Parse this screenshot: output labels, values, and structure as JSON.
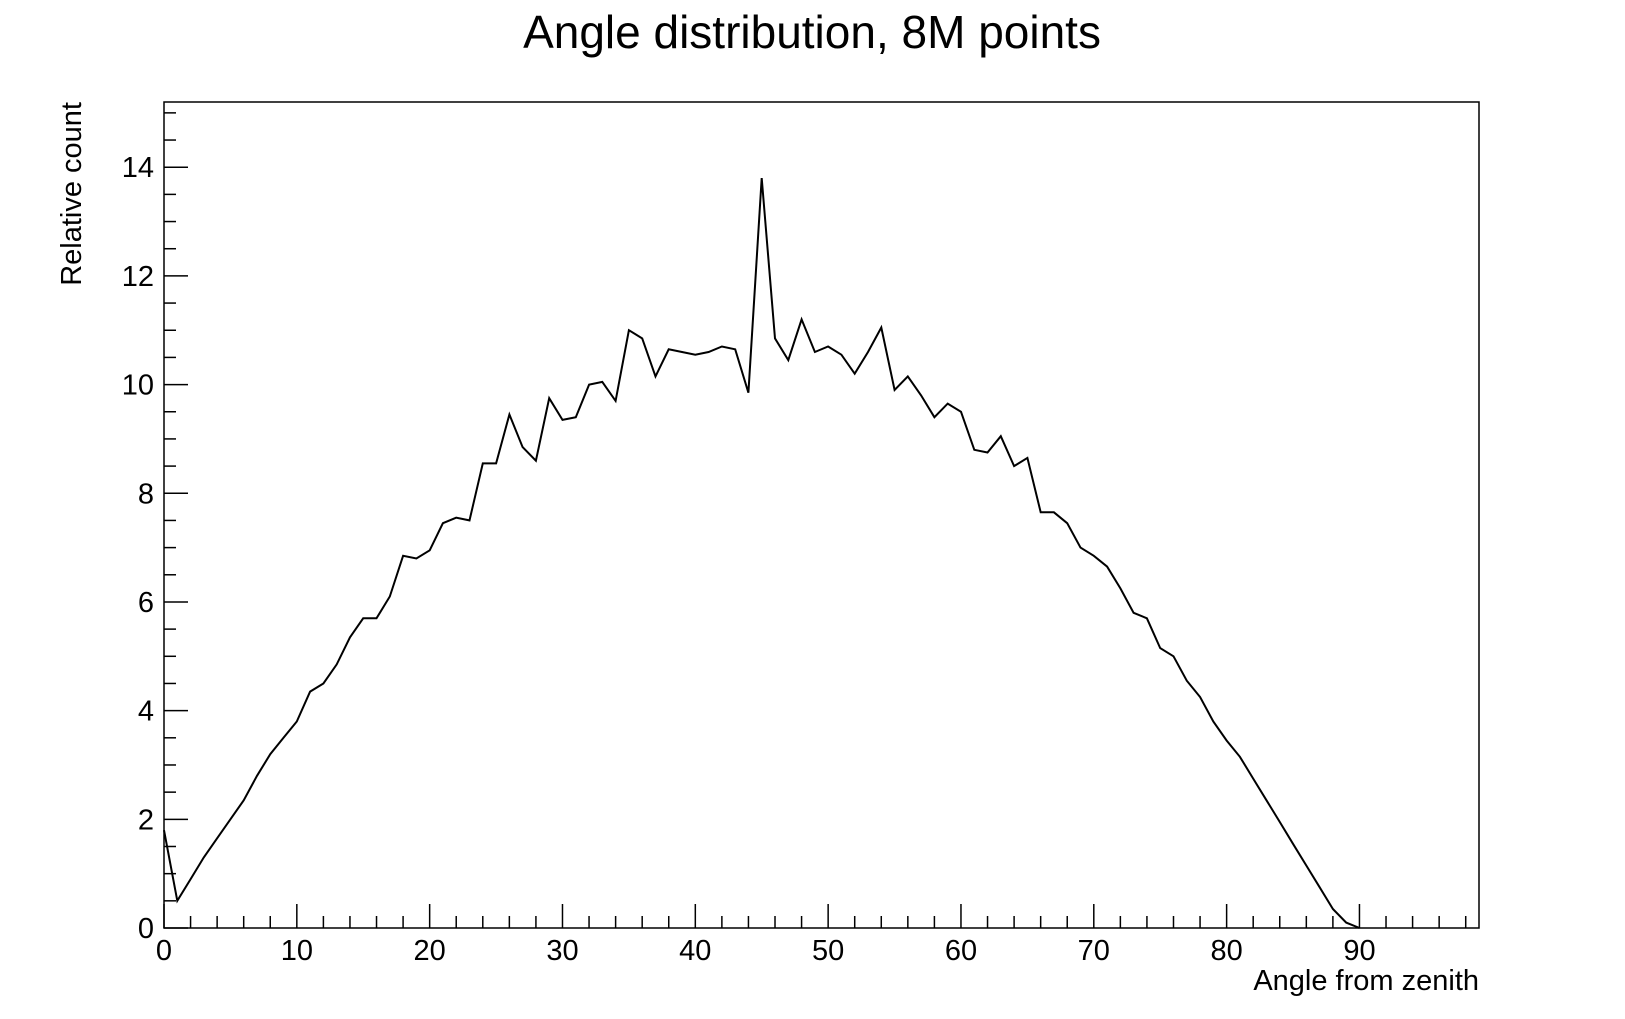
{
  "chart_data": {
    "type": "line",
    "title": "Angle distribution, 8M points",
    "xlabel": "Angle from zenith",
    "ylabel": "Relative count",
    "xlim": [
      0,
      99
    ],
    "ylim": [
      0,
      15.2
    ],
    "xticks": [
      0,
      10,
      20,
      30,
      40,
      50,
      60,
      70,
      80,
      90
    ],
    "yticks": [
      0,
      2,
      4,
      6,
      8,
      10,
      12,
      14
    ],
    "grid": false,
    "legend": "none",
    "series": [
      {
        "x": [
          0,
          1,
          2,
          3,
          4,
          5,
          6,
          7,
          8,
          9,
          10,
          11,
          12,
          13,
          14,
          15,
          16,
          17,
          18,
          19,
          20,
          21,
          22,
          23,
          24,
          25,
          26,
          27,
          28,
          29,
          30,
          31,
          32,
          33,
          34,
          35,
          36,
          37,
          38,
          39,
          40,
          41,
          42,
          43,
          44,
          45,
          46,
          47,
          48,
          49,
          50,
          51,
          52,
          53,
          54,
          55,
          56,
          57,
          58,
          59,
          60,
          61,
          62,
          63,
          64,
          65,
          66,
          67,
          68,
          69,
          70,
          71,
          72,
          73,
          74,
          75,
          76,
          77,
          78,
          79,
          80,
          81,
          82,
          83,
          84,
          85,
          86,
          87,
          88,
          89,
          90
        ],
        "values": [
          1.8,
          0.5,
          0.9,
          1.3,
          1.65,
          2.0,
          2.35,
          2.8,
          3.2,
          3.5,
          3.8,
          4.35,
          4.5,
          4.85,
          5.35,
          5.7,
          5.7,
          6.1,
          6.85,
          6.8,
          6.95,
          7.45,
          7.55,
          7.5,
          8.55,
          8.55,
          9.45,
          8.85,
          8.6,
          9.75,
          9.35,
          9.4,
          10.0,
          10.05,
          9.7,
          11.0,
          10.85,
          10.15,
          10.65,
          10.6,
          10.55,
          10.6,
          10.7,
          10.65,
          9.85,
          13.8,
          10.85,
          10.45,
          11.2,
          10.6,
          10.7,
          10.55,
          10.2,
          10.6,
          11.05,
          9.9,
          10.15,
          9.8,
          9.4,
          9.65,
          9.5,
          8.8,
          8.75,
          9.05,
          8.5,
          8.65,
          7.65,
          7.65,
          7.45,
          7.0,
          6.85,
          6.65,
          6.25,
          5.8,
          5.7,
          5.15,
          5.0,
          4.55,
          4.25,
          3.8,
          3.45,
          3.15,
          2.75,
          2.35,
          1.95,
          1.55,
          1.15,
          0.75,
          0.35,
          0.1,
          0
        ]
      }
    ]
  }
}
